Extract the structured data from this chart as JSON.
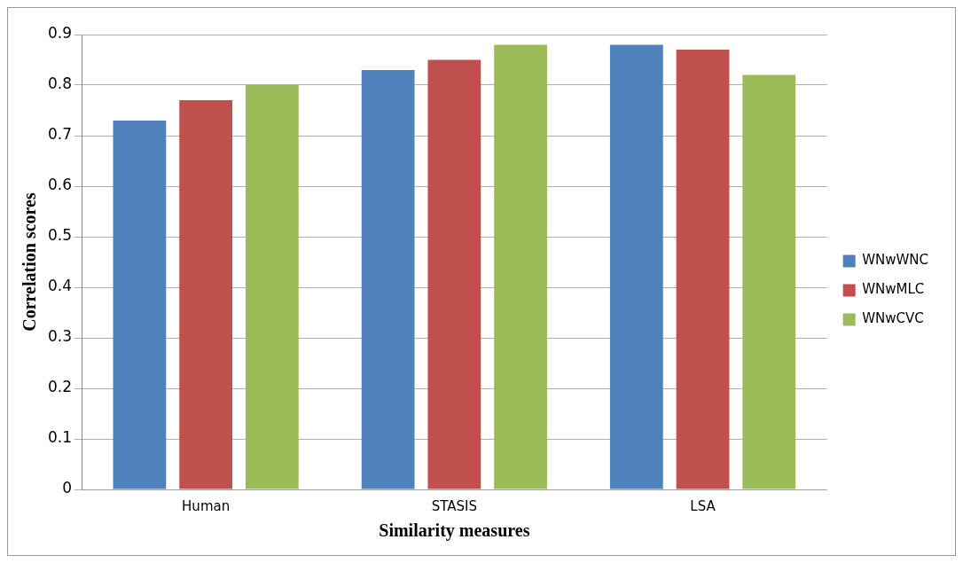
{
  "chart_data": {
    "type": "bar",
    "xlabel": "Similarity measures",
    "ylabel": "Correlation scores",
    "categories": [
      "Human",
      "STASIS",
      "LSA"
    ],
    "series": [
      {
        "name": "WNwWNC",
        "color": "#4f81bd",
        "values": [
          0.73,
          0.83,
          0.88
        ]
      },
      {
        "name": "WNwMLC",
        "color": "#c0504d",
        "values": [
          0.77,
          0.85,
          0.87
        ]
      },
      {
        "name": "WNwCVC",
        "color": "#9bbb59",
        "values": [
          0.8,
          0.88,
          0.82
        ]
      }
    ],
    "ylim": [
      0,
      0.9
    ],
    "yticks": [
      0,
      0.1,
      0.2,
      0.3,
      0.4,
      0.5,
      0.6,
      0.7,
      0.8,
      0.9
    ],
    "grid": "y",
    "legend": "right"
  }
}
